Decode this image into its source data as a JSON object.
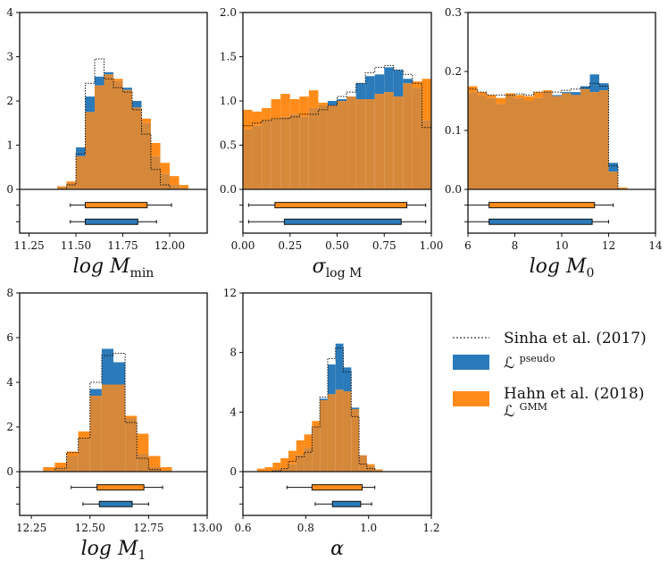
{
  "colors": {
    "blue": "#2b7bba",
    "orange": "#ff8c1a",
    "overlap": "#d6883a",
    "outline": "#111111"
  },
  "legend": {
    "sinha": "Sinha et al. (2017)",
    "pseudo": "ℒ",
    "pseudo_sup": "pseudo",
    "hahn_line1": "Hahn et al. (2018)",
    "hahn_line2": "ℒ",
    "hahn_sup": "GMM"
  },
  "chart_data": [
    {
      "type": "histogram",
      "xlabel": "log M",
      "xlabel_sub": "min",
      "xlim": [
        11.2,
        12.2
      ],
      "ylim": [
        0,
        4
      ],
      "xticks": [
        "11.25",
        "11.50",
        "11.75",
        "12.00"
      ],
      "xtick_values": [
        11.25,
        11.5,
        11.75,
        12.0
      ],
      "yticks": [
        "0",
        "1",
        "2",
        "3",
        "4"
      ],
      "ytick_values": [
        0,
        1,
        2,
        3,
        4
      ],
      "bin_edges": [
        11.4,
        11.45,
        11.5,
        11.55,
        11.6,
        11.65,
        11.7,
        11.75,
        11.8,
        11.85,
        11.9,
        11.95,
        12.0,
        12.05,
        12.1
      ],
      "pseudo": [
        0.05,
        0.15,
        0.95,
        2.1,
        2.55,
        2.65,
        2.45,
        2.3,
        2.0,
        1.5,
        0.75,
        0.35,
        0.1,
        0.03
      ],
      "gmm": [
        0.07,
        0.18,
        0.75,
        1.75,
        2.35,
        2.6,
        2.5,
        2.25,
        1.85,
        1.6,
        1.05,
        0.6,
        0.3,
        0.1
      ],
      "sinha": [
        0.0,
        0.1,
        0.8,
        2.4,
        2.95,
        2.5,
        2.3,
        2.2,
        1.8,
        1.25,
        0.45,
        0.1,
        0.0,
        0.0
      ],
      "gmm_box": {
        "whisker_low": 11.47,
        "q1": 11.55,
        "q3": 11.88,
        "whisker_high": 12.01
      },
      "pseudo_box": {
        "whisker_low": 11.47,
        "q1": 11.55,
        "q3": 11.83,
        "whisker_high": 11.93
      }
    },
    {
      "type": "histogram",
      "xlabel": "σ",
      "xlabel_sub": "log M",
      "xlim": [
        0.0,
        1.0
      ],
      "ylim": [
        0,
        2
      ],
      "xticks": [
        "0.00",
        "0.25",
        "0.50",
        "0.75",
        "1.00"
      ],
      "xtick_values": [
        0,
        0.25,
        0.5,
        0.75,
        1.0
      ],
      "yticks": [
        "0.0",
        "0.5",
        "1.0",
        "1.5",
        "2.0"
      ],
      "ytick_values": [
        0,
        0.5,
        1.0,
        1.5,
        2.0
      ],
      "bin_edges": [
        0.0,
        0.05,
        0.1,
        0.15,
        0.2,
        0.25,
        0.3,
        0.35,
        0.4,
        0.45,
        0.5,
        0.55,
        0.6,
        0.65,
        0.7,
        0.75,
        0.8,
        0.85,
        0.9,
        0.95,
        1.0
      ],
      "pseudo": [
        0.68,
        0.72,
        0.78,
        0.8,
        0.82,
        0.85,
        0.82,
        0.92,
        0.95,
        1.0,
        1.02,
        1.05,
        1.2,
        1.28,
        1.3,
        1.38,
        1.35,
        1.25,
        1.15,
        0.78
      ],
      "gmm": [
        0.9,
        0.88,
        0.92,
        1.02,
        1.08,
        1.02,
        1.05,
        1.12,
        0.98,
        0.95,
        1.0,
        1.05,
        1.02,
        1.02,
        1.08,
        1.1,
        1.05,
        1.2,
        1.22,
        1.25
      ],
      "sinha": [
        0.72,
        0.75,
        0.78,
        0.8,
        0.8,
        0.82,
        0.85,
        0.85,
        0.9,
        0.95,
        1.05,
        1.1,
        1.2,
        1.32,
        1.38,
        1.4,
        1.35,
        1.3,
        1.2,
        0.7
      ],
      "gmm_box": {
        "whisker_low": 0.03,
        "q1": 0.17,
        "q3": 0.87,
        "whisker_high": 0.97
      },
      "pseudo_box": {
        "whisker_low": 0.03,
        "q1": 0.22,
        "q3": 0.84,
        "whisker_high": 0.97
      }
    },
    {
      "type": "histogram",
      "xlabel": "log M",
      "xlabel_sub": "0",
      "xlim": [
        6,
        14
      ],
      "ylim": [
        0,
        0.3
      ],
      "xticks": [
        "6",
        "8",
        "10",
        "12",
        "14"
      ],
      "xtick_values": [
        6,
        8,
        10,
        12,
        14
      ],
      "yticks": [
        "0.0",
        "0.1",
        "0.2",
        "0.3"
      ],
      "ytick_values": [
        0,
        0.1,
        0.2,
        0.3
      ],
      "bin_edges": [
        6.0,
        6.4,
        6.8,
        7.2,
        7.6,
        8.0,
        8.4,
        8.8,
        9.2,
        9.6,
        10.0,
        10.4,
        10.8,
        11.2,
        11.6,
        12.0,
        12.4,
        12.8
      ],
      "pseudo": [
        0.165,
        0.16,
        0.155,
        0.145,
        0.16,
        0.155,
        0.15,
        0.155,
        0.165,
        0.16,
        0.165,
        0.165,
        0.175,
        0.195,
        0.18,
        0.045,
        0.0
      ],
      "gmm": [
        0.175,
        0.165,
        0.16,
        0.155,
        0.163,
        0.16,
        0.158,
        0.165,
        0.168,
        0.158,
        0.163,
        0.16,
        0.17,
        0.165,
        0.168,
        0.03,
        0.003
      ],
      "sinha": [
        0.17,
        0.165,
        0.16,
        0.16,
        0.16,
        0.162,
        0.16,
        0.165,
        0.165,
        0.165,
        0.168,
        0.17,
        0.172,
        0.18,
        0.175,
        0.04,
        0.0
      ],
      "gmm_box": {
        "whisker_low": 6.0,
        "q1": 6.9,
        "q3": 11.4,
        "whisker_high": 12.2
      },
      "pseudo_box": {
        "whisker_low": 6.0,
        "q1": 6.9,
        "q3": 11.3,
        "whisker_high": 12.0
      }
    },
    {
      "type": "histogram",
      "xlabel": "log M",
      "xlabel_sub": "1",
      "xlim": [
        12.2,
        13.0
      ],
      "ylim": [
        0,
        8
      ],
      "xticks": [
        "12.25",
        "12.50",
        "12.75",
        "13.00"
      ],
      "xtick_values": [
        12.25,
        12.5,
        12.75,
        13.0
      ],
      "yticks": [
        "0",
        "2",
        "4",
        "6",
        "8"
      ],
      "ytick_values": [
        0,
        2,
        4,
        6,
        8
      ],
      "bin_edges": [
        12.3,
        12.35,
        12.4,
        12.45,
        12.5,
        12.55,
        12.6,
        12.65,
        12.7,
        12.75,
        12.8,
        12.85
      ],
      "pseudo": [
        0.05,
        0.15,
        0.7,
        1.5,
        3.7,
        5.5,
        4.9,
        2.4,
        0.8,
        0.2,
        0.05
      ],
      "gmm": [
        0.2,
        0.4,
        0.9,
        1.8,
        3.4,
        3.9,
        3.9,
        2.5,
        1.7,
        0.7,
        0.2
      ],
      "sinha": [
        0.0,
        0.15,
        0.85,
        1.5,
        4.0,
        5.2,
        5.3,
        2.2,
        0.6,
        0.1,
        0.0
      ],
      "gmm_box": {
        "whisker_low": 12.42,
        "q1": 12.53,
        "q3": 12.73,
        "whisker_high": 12.81
      },
      "pseudo_box": {
        "whisker_low": 12.47,
        "q1": 12.54,
        "q3": 12.68,
        "whisker_high": 12.75
      }
    },
    {
      "type": "histogram",
      "xlabel": "α",
      "xlabel_sub": "",
      "xlim": [
        0.6,
        1.2
      ],
      "ylim": [
        0,
        12
      ],
      "xticks": [
        "0.6",
        "0.8",
        "1.0",
        "1.2"
      ],
      "xtick_values": [
        0.6,
        0.8,
        1.0,
        1.2
      ],
      "yticks": [
        "0",
        "4",
        "8",
        "12"
      ],
      "ytick_values": [
        0,
        4,
        8,
        12
      ],
      "bin_edges": [
        0.645,
        0.67,
        0.695,
        0.72,
        0.745,
        0.77,
        0.795,
        0.82,
        0.845,
        0.87,
        0.895,
        0.92,
        0.945,
        0.97,
        0.995,
        1.02,
        1.045
      ],
      "pseudo": [
        0.0,
        0.0,
        0.1,
        0.2,
        0.5,
        1.1,
        1.6,
        3.0,
        4.9,
        7.2,
        8.6,
        7.0,
        4.3,
        1.1,
        0.4,
        0.1
      ],
      "gmm": [
        0.2,
        0.3,
        0.6,
        0.9,
        1.4,
        2.1,
        2.5,
        3.4,
        4.8,
        5.2,
        5.5,
        5.4,
        4.2,
        1.1,
        0.5,
        0.15
      ],
      "sinha": [
        0.0,
        0.0,
        0.05,
        0.2,
        0.7,
        1.0,
        1.3,
        3.0,
        5.0,
        7.6,
        8.3,
        6.7,
        3.7,
        0.5,
        0.2,
        0.0
      ],
      "gmm_box": {
        "whisker_low": 0.74,
        "q1": 0.82,
        "q3": 0.98,
        "whisker_high": 1.02
      },
      "pseudo_box": {
        "whisker_low": 0.83,
        "q1": 0.885,
        "q3": 0.975,
        "whisker_high": 1.01
      }
    }
  ]
}
